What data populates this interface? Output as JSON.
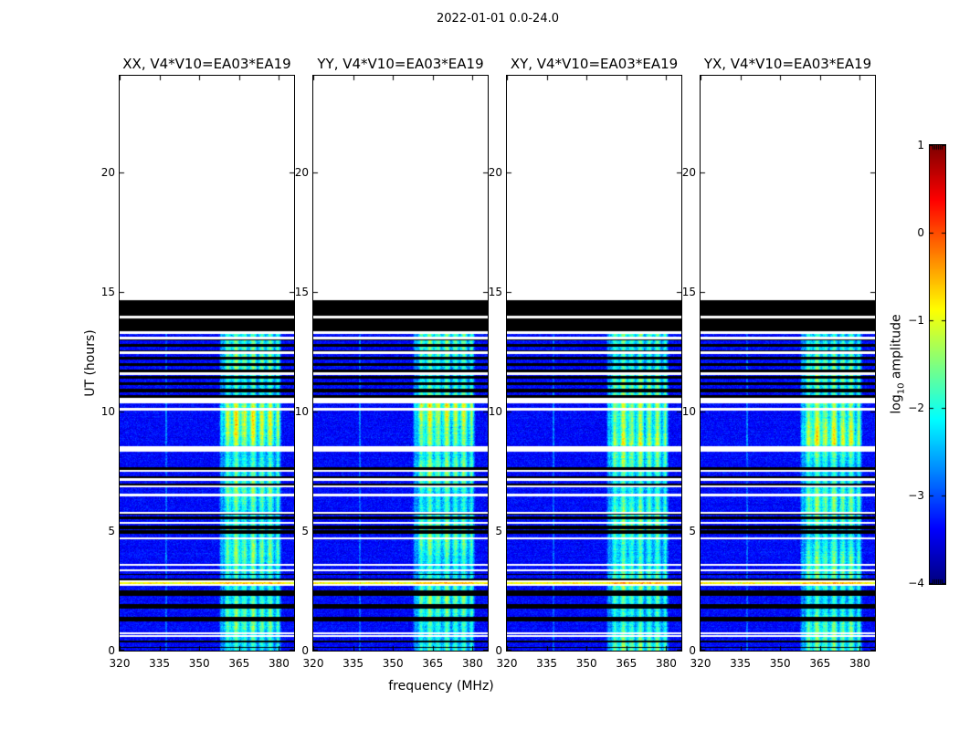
{
  "chart_data": {
    "type": "heatmap",
    "suptitle": "2022-01-01 0.0-24.0",
    "xlabel": "frequency (MHz)",
    "ylabel": "UT (hours)",
    "xlim": [
      320,
      385.7
    ],
    "ylim": [
      0,
      24.05
    ],
    "xticks": [
      320,
      335,
      350,
      365,
      380
    ],
    "yticks": [
      0,
      5,
      10,
      15,
      20
    ],
    "grid": false,
    "panels": [
      {
        "pol": "XX",
        "title": "XX, V4*V10=EA03*EA19"
      },
      {
        "pol": "YY",
        "title": "YY, V4*V10=EA03*EA19"
      },
      {
        "pol": "XY",
        "title": "XY, V4*V10=EA03*EA19"
      },
      {
        "pol": "YX",
        "title": "YX, V4*V10=EA03*EA19"
      }
    ],
    "colorbar": {
      "label_pre": "log",
      "label_sub": "10",
      "label_post": " amplitude",
      "ticks": [
        "1",
        "0",
        "−1",
        "−2",
        "−3",
        "−4"
      ],
      "tick_values": [
        1,
        0,
        -1,
        -2,
        -3,
        -4
      ],
      "vmin": -4,
      "vmax": 1,
      "colormap": "jet",
      "position": "right"
    },
    "spectrogram": {
      "data_max_time": 14.67,
      "noise_floor_log": -3.35,
      "rfi_band": {
        "f0": 357.5,
        "f1": 381.2,
        "boost": 1.12,
        "comb_period": 3.2,
        "clumps": [
          [
            361.5,
            366.5,
            0.3
          ],
          [
            368.5,
            371.5,
            0.25
          ],
          [
            373.5,
            378.0,
            0.15
          ]
        ]
      },
      "bright_region": [
        8.6,
        10.4
      ],
      "bright_row": {
        "t": 2.82,
        "level": -0.9
      },
      "faint_line_mhz": 337.4,
      "striped_region": {
        "t0": 10.55,
        "t1": 13.28,
        "period": 0.27,
        "duty": 0.45
      },
      "black_bands": [
        [
          13.33,
          14.67
        ],
        [
          7.55,
          7.67
        ],
        [
          7.2,
          7.3
        ],
        [
          6.9,
          7.0
        ],
        [
          5.67,
          5.73
        ],
        [
          5.5,
          5.62
        ],
        [
          5.08,
          5.22
        ],
        [
          4.9,
          5.02
        ],
        [
          3.15,
          3.22
        ],
        [
          2.95,
          3.02
        ],
        [
          2.3,
          2.52
        ],
        [
          1.76,
          1.95
        ],
        [
          1.22,
          1.41
        ],
        [
          0.33,
          0.42
        ],
        [
          0.1,
          0.17
        ]
      ],
      "white_lines": [
        [
          13.95,
          0.1
        ],
        [
          13.31,
          0.09
        ],
        [
          13.09,
          0.08
        ],
        [
          12.45,
          0.08
        ],
        [
          11.57,
          0.08
        ],
        [
          10.45,
          0.2
        ],
        [
          10.11,
          0.08
        ],
        [
          8.42,
          0.2
        ],
        [
          7.52,
          0.07
        ],
        [
          7.15,
          0.07
        ],
        [
          6.87,
          0.07
        ],
        [
          6.5,
          0.07
        ],
        [
          5.76,
          0.07
        ],
        [
          5.35,
          0.07
        ],
        [
          4.7,
          0.07
        ],
        [
          3.59,
          0.07
        ],
        [
          3.36,
          0.07
        ],
        [
          2.9,
          0.06
        ],
        [
          2.74,
          0.06
        ],
        [
          0.72,
          0.06
        ],
        [
          0.6,
          0.06
        ]
      ]
    }
  }
}
